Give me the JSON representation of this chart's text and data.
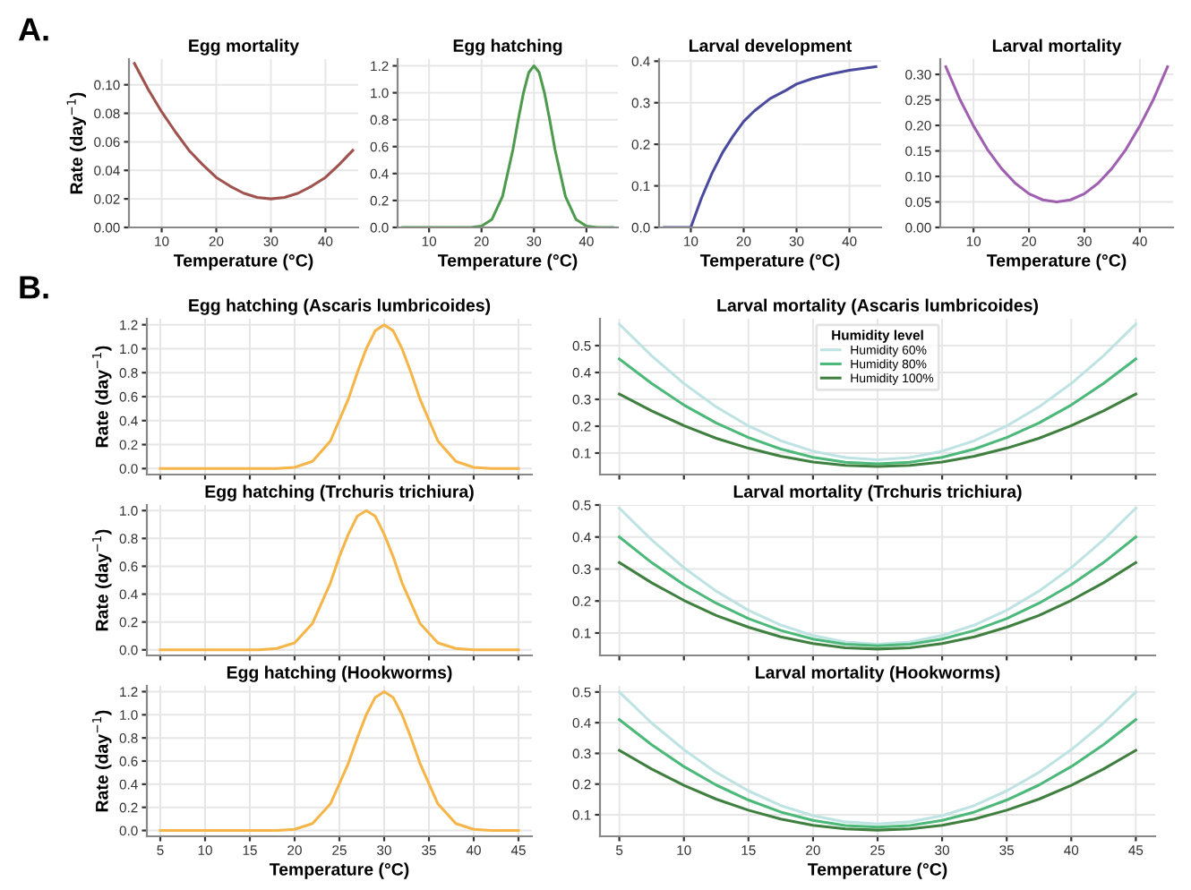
{
  "chart_data": [
    {
      "type": "line",
      "title": "Egg mortality",
      "xlabel": "Temperature (°C)",
      "ylabel": "Rate (day$^{−1}$)",
      "annotations": [
        "A."
      ],
      "xlim": [
        4,
        46
      ],
      "xticks": [
        10,
        20,
        30,
        40
      ],
      "ylim": [
        0,
        0.118
      ],
      "yticks": [
        {
          "value": 0,
          "label": "0.00"
        },
        {
          "value": 0.02,
          "label": "0.02"
        },
        {
          "value": 0.04,
          "label": "0.04"
        },
        {
          "value": 0.06,
          "label": "0.06"
        },
        {
          "value": 0.08,
          "label": "0.08"
        },
        {
          "value": 0.1,
          "label": "0.10"
        }
      ],
      "grid": true,
      "legend": false,
      "x": [
        5,
        7.5,
        10,
        12.5,
        15,
        17.5,
        20,
        22.5,
        25,
        27.5,
        30,
        32.5,
        35,
        37.5,
        40,
        42.5,
        45
      ],
      "series": [
        {
          "color": "#a0524f",
          "values": [
            0.115,
            0.097,
            0.081,
            0.067,
            0.054,
            0.044,
            0.035,
            0.029,
            0.024,
            0.021,
            0.02,
            0.021,
            0.024,
            0.029,
            0.035,
            0.044,
            0.054
          ]
        }
      ]
    },
    {
      "type": "line",
      "title": "Egg hatching",
      "xlabel": "Temperature (°C)",
      "xlim": [
        4,
        46
      ],
      "xticks": [
        10,
        20,
        30,
        40
      ],
      "ylim": [
        0,
        1.25
      ],
      "yticks": [
        {
          "value": 0,
          "label": "0.0"
        },
        {
          "value": 0.2,
          "label": "0.2"
        },
        {
          "value": 0.4,
          "label": "0.4"
        },
        {
          "value": 0.6,
          "label": "0.6"
        },
        {
          "value": 0.8,
          "label": "0.8"
        },
        {
          "value": 1.0,
          "label": "1.0"
        },
        {
          "value": 1.2,
          "label": "1.2"
        }
      ],
      "grid": true,
      "legend": false,
      "x": [
        5,
        10,
        15,
        18,
        20,
        22,
        24,
        26,
        27,
        28,
        29,
        30,
        31,
        32,
        33,
        34,
        36,
        38,
        40,
        42,
        45
      ],
      "series": [
        {
          "color": "#4e9a4e",
          "values": [
            0,
            0,
            0,
            0,
            0.01,
            0.06,
            0.23,
            0.58,
            0.8,
            1.0,
            1.15,
            1.2,
            1.15,
            1.0,
            0.8,
            0.58,
            0.23,
            0.06,
            0.01,
            0,
            0
          ]
        }
      ]
    },
    {
      "type": "line",
      "title": "Larval development",
      "xlabel": "Temperature (°C)",
      "xlim": [
        4,
        46
      ],
      "xticks": [
        10,
        20,
        30,
        40
      ],
      "ylim": [
        0,
        0.405
      ],
      "yticks": [
        {
          "value": 0,
          "label": "0.0"
        },
        {
          "value": 0.1,
          "label": "0.1"
        },
        {
          "value": 0.2,
          "label": "0.2"
        },
        {
          "value": 0.3,
          "label": "0.3"
        },
        {
          "value": 0.4,
          "label": "0.4"
        }
      ],
      "grid": true,
      "legend": false,
      "x": [
        5,
        10,
        12,
        14,
        16,
        18,
        20,
        22,
        25,
        28,
        30,
        33,
        36,
        40,
        45
      ],
      "series": [
        {
          "color": "#4a4a9e",
          "values": [
            0,
            0,
            0.07,
            0.13,
            0.18,
            0.22,
            0.255,
            0.28,
            0.31,
            0.33,
            0.345,
            0.358,
            0.368,
            0.378,
            0.387
          ]
        }
      ]
    },
    {
      "type": "line",
      "title": "Larval mortality",
      "xlabel": "Temperature (°C)",
      "xlim": [
        4,
        46
      ],
      "xticks": [
        10,
        20,
        30,
        40
      ],
      "ylim": [
        0,
        0.33
      ],
      "yticks": [
        {
          "value": 0,
          "label": "0.00"
        },
        {
          "value": 0.05,
          "label": "0.05"
        },
        {
          "value": 0.1,
          "label": "0.10"
        },
        {
          "value": 0.15,
          "label": "0.15"
        },
        {
          "value": 0.2,
          "label": "0.20"
        },
        {
          "value": 0.25,
          "label": "0.25"
        },
        {
          "value": 0.3,
          "label": "0.30"
        }
      ],
      "grid": true,
      "legend": false,
      "x": [
        5,
        7.5,
        10,
        12.5,
        15,
        17.5,
        20,
        22.5,
        25,
        27.5,
        30,
        32.5,
        35,
        37.5,
        40,
        42.5,
        45
      ],
      "series": [
        {
          "color": "#a060b0",
          "values": [
            0.315,
            0.252,
            0.199,
            0.153,
            0.116,
            0.087,
            0.066,
            0.054,
            0.05,
            0.054,
            0.066,
            0.087,
            0.116,
            0.153,
            0.199,
            0.252,
            0.315
          ]
        }
      ]
    },
    {
      "type": "line",
      "title": "Egg hatching (Ascaris lumbricoides)",
      "ylabel": "Rate (day$^{−1}$)",
      "annotations": [
        "B."
      ],
      "xlim": [
        3.5,
        46.5
      ],
      "xticks": [
        5,
        10,
        15,
        20,
        25,
        30,
        35,
        40,
        45
      ],
      "ylim": [
        -0.05,
        1.25
      ],
      "yticks": [
        {
          "value": 0,
          "label": "0.0"
        },
        {
          "value": 0.2,
          "label": "0.2"
        },
        {
          "value": 0.4,
          "label": "0.4"
        },
        {
          "value": 0.6,
          "label": "0.6"
        },
        {
          "value": 0.8,
          "label": "0.8"
        },
        {
          "value": 1.0,
          "label": "1.0"
        },
        {
          "value": 1.2,
          "label": "1.2"
        }
      ],
      "grid": true,
      "legend": false,
      "tick_labels": "y",
      "x": [
        5,
        10,
        15,
        18,
        20,
        22,
        24,
        26,
        27,
        28,
        29,
        30,
        31,
        32,
        33,
        34,
        36,
        38,
        40,
        42,
        45
      ],
      "series": [
        {
          "color": "#f5b548",
          "values": [
            0,
            0,
            0,
            0,
            0.01,
            0.06,
            0.23,
            0.58,
            0.8,
            1.0,
            1.15,
            1.2,
            1.15,
            1.0,
            0.8,
            0.58,
            0.23,
            0.06,
            0.01,
            0,
            0
          ]
        }
      ]
    },
    {
      "type": "line",
      "title": "Larval mortality (Ascaris lumbricoides)",
      "legend_title": "Humidity level",
      "xlim": [
        3.5,
        46.5
      ],
      "xticks": [
        5,
        10,
        15,
        20,
        25,
        30,
        35,
        40,
        45
      ],
      "ylim": [
        0.02,
        0.6
      ],
      "yticks": [
        0.1,
        0.2,
        0.3,
        0.4,
        0.5
      ],
      "grid": true,
      "legend": "top",
      "tick_labels": "y",
      "x": [
        5,
        7.5,
        10,
        12.5,
        15,
        17.5,
        20,
        22.5,
        25,
        27.5,
        30,
        32.5,
        35,
        37.5,
        40,
        42.5,
        45
      ],
      "series": [
        {
          "name": "Humidity 60%",
          "color": "#bfe3e3",
          "values": [
            0.58,
            0.462,
            0.359,
            0.272,
            0.201,
            0.146,
            0.107,
            0.083,
            0.075,
            0.083,
            0.107,
            0.146,
            0.201,
            0.272,
            0.359,
            0.462,
            0.58
          ]
        },
        {
          "name": "Humidity 80%",
          "color": "#4cb87a",
          "values": [
            0.45,
            0.359,
            0.279,
            0.212,
            0.158,
            0.115,
            0.084,
            0.066,
            0.06,
            0.066,
            0.084,
            0.115,
            0.158,
            0.212,
            0.279,
            0.359,
            0.45
          ]
        },
        {
          "name": "Humidity 100%",
          "color": "#3f7f3f",
          "values": [
            0.32,
            0.257,
            0.202,
            0.155,
            0.118,
            0.088,
            0.067,
            0.054,
            0.05,
            0.054,
            0.067,
            0.088,
            0.118,
            0.155,
            0.202,
            0.257,
            0.32
          ]
        }
      ]
    },
    {
      "type": "line",
      "title": "Egg hatching (Trchuris trichiura)",
      "ylabel": "Rate (day$^{−1}$)",
      "xlim": [
        3.5,
        46.5
      ],
      "xticks": [
        5,
        10,
        15,
        20,
        25,
        30,
        35,
        40,
        45
      ],
      "ylim": [
        -0.04,
        1.04
      ],
      "yticks": [
        {
          "value": 0,
          "label": "0.0"
        },
        {
          "value": 0.2,
          "label": "0.2"
        },
        {
          "value": 0.4,
          "label": "0.4"
        },
        {
          "value": 0.6,
          "label": "0.6"
        },
        {
          "value": 0.8,
          "label": "0.8"
        },
        {
          "value": 1.0,
          "label": "1.0"
        }
      ],
      "grid": true,
      "legend": false,
      "tick_labels": "y",
      "x": [
        5,
        10,
        15,
        16,
        18,
        20,
        22,
        24,
        25,
        26,
        27,
        28,
        29,
        30,
        31,
        32,
        34,
        36,
        38,
        40,
        45
      ],
      "series": [
        {
          "color": "#f5b548",
          "values": [
            0,
            0,
            0,
            0,
            0.01,
            0.05,
            0.19,
            0.48,
            0.67,
            0.83,
            0.96,
            1.0,
            0.96,
            0.83,
            0.67,
            0.48,
            0.19,
            0.05,
            0.01,
            0,
            0
          ]
        }
      ]
    },
    {
      "type": "line",
      "title": "Larval mortality (Trchuris trichiura)",
      "xlim": [
        3.5,
        46.5
      ],
      "xticks": [
        5,
        10,
        15,
        20,
        25,
        30,
        35,
        40,
        45
      ],
      "ylim": [
        0.03,
        0.5
      ],
      "yticks": [
        0.1,
        0.2,
        0.3,
        0.4,
        0.5
      ],
      "grid": true,
      "legend": false,
      "tick_labels": "y",
      "x": [
        5,
        7.5,
        10,
        12.5,
        15,
        17.5,
        20,
        22.5,
        25,
        27.5,
        30,
        32.5,
        35,
        37.5,
        40,
        42.5,
        45
      ],
      "series": [
        {
          "color": "#bfe3e3",
          "values": [
            0.49,
            0.391,
            0.304,
            0.231,
            0.171,
            0.125,
            0.092,
            0.072,
            0.065,
            0.072,
            0.092,
            0.125,
            0.171,
            0.231,
            0.304,
            0.391,
            0.49
          ]
        },
        {
          "color": "#4cb87a",
          "values": [
            0.4,
            0.32,
            0.251,
            0.193,
            0.145,
            0.108,
            0.081,
            0.065,
            0.06,
            0.065,
            0.081,
            0.108,
            0.145,
            0.193,
            0.251,
            0.32,
            0.4
          ]
        },
        {
          "color": "#3f7f3f",
          "values": [
            0.32,
            0.257,
            0.202,
            0.155,
            0.118,
            0.088,
            0.067,
            0.054,
            0.05,
            0.054,
            0.067,
            0.088,
            0.118,
            0.155,
            0.202,
            0.257,
            0.32
          ]
        }
      ]
    },
    {
      "type": "line",
      "title": "Egg hatching (Hookworms)",
      "xlabel": "Temperature (°C)",
      "ylabel": "Rate (day$^{−1}$)",
      "xlim": [
        3.5,
        46.5
      ],
      "xticks": [
        5,
        10,
        15,
        20,
        25,
        30,
        35,
        40,
        45
      ],
      "ylim": [
        -0.05,
        1.25
      ],
      "yticks": [
        {
          "value": 0,
          "label": "0.0"
        },
        {
          "value": 0.2,
          "label": "0.2"
        },
        {
          "value": 0.4,
          "label": "0.4"
        },
        {
          "value": 0.6,
          "label": "0.6"
        },
        {
          "value": 0.8,
          "label": "0.8"
        },
        {
          "value": 1.0,
          "label": "1.0"
        },
        {
          "value": 1.2,
          "label": "1.2"
        }
      ],
      "grid": true,
      "legend": false,
      "x": [
        5,
        10,
        15,
        18,
        20,
        22,
        24,
        26,
        27,
        28,
        29,
        30,
        31,
        32,
        33,
        34,
        36,
        38,
        40,
        42,
        45
      ],
      "series": [
        {
          "color": "#f5b548",
          "values": [
            0,
            0,
            0,
            0,
            0.01,
            0.06,
            0.23,
            0.58,
            0.8,
            1.0,
            1.15,
            1.2,
            1.15,
            1.0,
            0.8,
            0.58,
            0.23,
            0.06,
            0.01,
            0,
            0
          ]
        }
      ]
    },
    {
      "type": "line",
      "title": "Larval mortality (Hookworms)",
      "xlabel": "Temperature (°C)",
      "xlim": [
        3.5,
        46.5
      ],
      "xticks": [
        5,
        10,
        15,
        20,
        25,
        30,
        35,
        40,
        45
      ],
      "ylim": [
        0.03,
        0.52
      ],
      "yticks": [
        0.1,
        0.2,
        0.3,
        0.4,
        0.5
      ],
      "grid": true,
      "legend": false,
      "x": [
        5,
        7.5,
        10,
        12.5,
        15,
        17.5,
        20,
        22.5,
        25,
        27.5,
        30,
        32.5,
        35,
        37.5,
        40,
        42.5,
        45
      ],
      "series": [
        {
          "color": "#bfe3e3",
          "values": [
            0.5,
            0.399,
            0.312,
            0.238,
            0.178,
            0.13,
            0.097,
            0.077,
            0.07,
            0.077,
            0.097,
            0.13,
            0.178,
            0.238,
            0.312,
            0.399,
            0.5
          ]
        },
        {
          "color": "#4cb87a",
          "values": [
            0.41,
            0.328,
            0.257,
            0.197,
            0.148,
            0.109,
            0.082,
            0.065,
            0.06,
            0.065,
            0.082,
            0.109,
            0.148,
            0.197,
            0.257,
            0.328,
            0.41
          ]
        },
        {
          "color": "#3f7f3f",
          "values": [
            0.31,
            0.249,
            0.196,
            0.151,
            0.115,
            0.086,
            0.066,
            0.054,
            0.05,
            0.054,
            0.066,
            0.086,
            0.115,
            0.151,
            0.196,
            0.249,
            0.31
          ]
        }
      ]
    }
  ]
}
